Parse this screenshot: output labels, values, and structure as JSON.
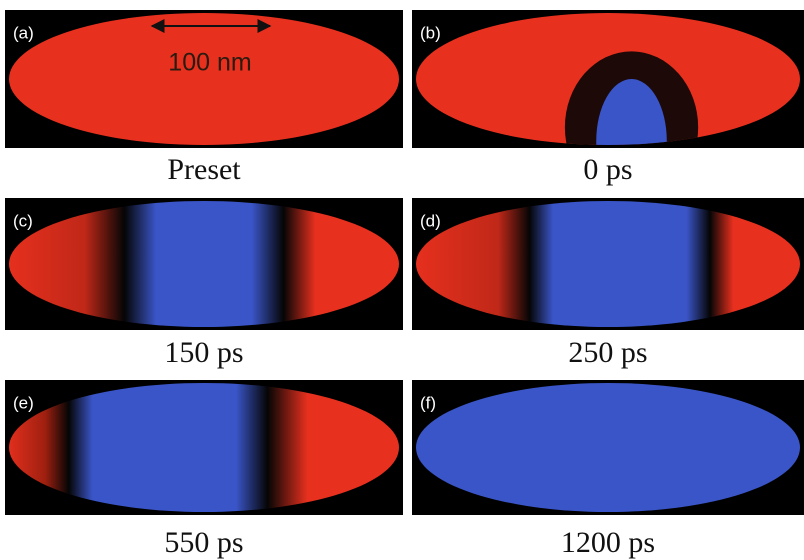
{
  "scale_bar": "100 nm",
  "panels": [
    {
      "label": "(a)",
      "caption": "Preset"
    },
    {
      "label": "(b)",
      "caption": "0 ps"
    },
    {
      "label": "(c)",
      "caption": "150 ps"
    },
    {
      "label": "(d)",
      "caption": "250 ps"
    },
    {
      "label": "(e)",
      "caption": "550 ps"
    },
    {
      "label": "(f)",
      "caption": "1200 ps"
    }
  ]
}
